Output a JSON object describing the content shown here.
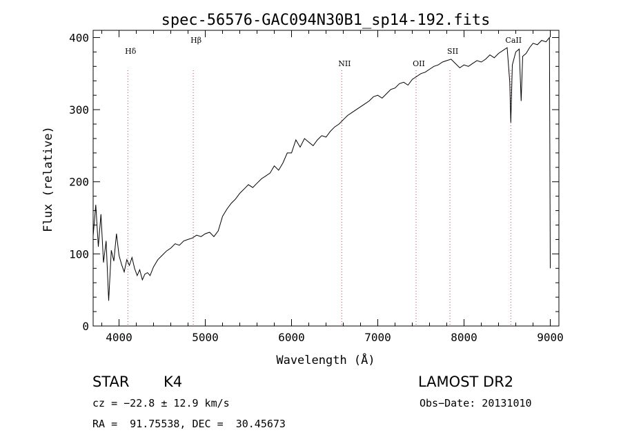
{
  "chart_data": {
    "type": "line",
    "title": "spec-56576-GAC094N30B1_sp14-192.fits",
    "xlabel": "Wavelength (Å)",
    "ylabel": "Flux (relative)",
    "xlim": [
      3700,
      9100
    ],
    "ylim": [
      0,
      410
    ],
    "x_ticks": [
      4000,
      5000,
      6000,
      7000,
      8000,
      9000
    ],
    "y_ticks": [
      0,
      100,
      200,
      300,
      400
    ],
    "grid": false,
    "line_color": "#000000",
    "marker_color": "#c04040",
    "line_markers": [
      {
        "label": "Hδ",
        "x": 4102
      },
      {
        "label": "Hβ",
        "x": 4861
      },
      {
        "label": "NII",
        "x": 6583
      },
      {
        "label": "OII",
        "x": 7444
      },
      {
        "label": "SII",
        "x": 7837
      },
      {
        "label": "CaII",
        "x": 8542
      }
    ],
    "series": [
      {
        "x": [
          3700,
          3730,
          3760,
          3790,
          3820,
          3850,
          3880,
          3910,
          3940,
          3970,
          4000,
          4030,
          4060,
          4090,
          4120,
          4150,
          4180,
          4210,
          4240,
          4270,
          4300,
          4330,
          4360,
          4400,
          4450,
          4500,
          4550,
          4600,
          4650,
          4700,
          4750,
          4800,
          4850,
          4900,
          4950,
          5000,
          5050,
          5100,
          5150,
          5200,
          5250,
          5300,
          5350,
          5400,
          5450,
          5500,
          5550,
          5600,
          5650,
          5700,
          5750,
          5800,
          5850,
          5900,
          5950,
          6000,
          6050,
          6100,
          6150,
          6200,
          6250,
          6300,
          6350,
          6400,
          6450,
          6500,
          6550,
          6600,
          6650,
          6700,
          6750,
          6800,
          6850,
          6900,
          6950,
          7000,
          7050,
          7100,
          7150,
          7200,
          7250,
          7300,
          7350,
          7400,
          7450,
          7500,
          7550,
          7600,
          7650,
          7700,
          7750,
          7800,
          7850,
          7900,
          7950,
          8000,
          8050,
          8100,
          8150,
          8200,
          8250,
          8300,
          8350,
          8400,
          8450,
          8500,
          8530,
          8542,
          8560,
          8600,
          8640,
          8662,
          8680,
          8720,
          8760,
          8800,
          8850,
          8900,
          8950,
          8990,
          9000
        ],
        "y": [
          125,
          168,
          110,
          155,
          88,
          118,
          35,
          105,
          90,
          128,
          98,
          85,
          75,
          92,
          84,
          95,
          80,
          70,
          78,
          64,
          72,
          74,
          70,
          82,
          92,
          98,
          104,
          108,
          114,
          112,
          118,
          120,
          122,
          126,
          124,
          128,
          130,
          124,
          132,
          152,
          162,
          170,
          176,
          184,
          190,
          196,
          192,
          198,
          204,
          208,
          212,
          222,
          216,
          226,
          240,
          240,
          258,
          248,
          260,
          255,
          250,
          258,
          264,
          262,
          270,
          276,
          280,
          286,
          292,
          296,
          300,
          304,
          308,
          312,
          318,
          320,
          316,
          322,
          328,
          330,
          336,
          338,
          334,
          342,
          346,
          350,
          352,
          356,
          360,
          362,
          366,
          368,
          370,
          364,
          358,
          362,
          360,
          364,
          368,
          366,
          370,
          376,
          372,
          378,
          382,
          386,
          338,
          282,
          362,
          380,
          384,
          312,
          374,
          378,
          386,
          392,
          390,
          396,
          394,
          400,
          80
        ]
      }
    ]
  },
  "info": {
    "object_type": "STAR",
    "subclass": "K4",
    "survey": "LAMOST DR2",
    "cz": "cz = −22.8 ± 12.9 km/s",
    "obs_date": "Obs−Date: 20131010",
    "coords": "RA =  91.75538, DEC =  30.45673"
  }
}
